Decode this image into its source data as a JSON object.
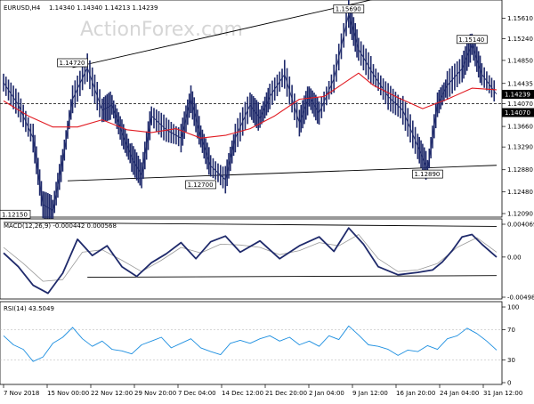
{
  "header": {
    "symbol_label": "EURUSD,H4",
    "ohlc": "1.14340 1.14340 1.14213 1.14239",
    "watermark": "ActionForex.com"
  },
  "chart_data": [
    {
      "type": "candlestick",
      "title": "EURUSD,H4",
      "ylim": [
        1.1209,
        1.1581
      ],
      "y_ticks": [
        "1.15610",
        "1.15240",
        "1.14850",
        "1.14435",
        "1.14070",
        "1.13660",
        "1.13290",
        "1.12880",
        "1.12480",
        "1.12090"
      ],
      "y_tick_values": [
        1.1561,
        1.1524,
        1.1485,
        1.14435,
        1.1407,
        1.1366,
        1.1329,
        1.1288,
        1.1248,
        1.1209
      ],
      "last_price_label": "1.14239",
      "level_label": "1.14070",
      "level_value": 1.1407,
      "series": [
        {
          "name": "price",
          "color": "#1f2a6b",
          "x": [
            0,
            3,
            6,
            8,
            10,
            12,
            14,
            17,
            20,
            22,
            24,
            26,
            28,
            30,
            33,
            36,
            38,
            40,
            42,
            45,
            47,
            50,
            52,
            54,
            57,
            60,
            62,
            64,
            67,
            70,
            72,
            75,
            78,
            81,
            84,
            86,
            88,
            90,
            93,
            95,
            97,
            100
          ],
          "y": [
            1.1445,
            1.1405,
            1.1345,
            1.1225,
            1.1215,
            1.1305,
            1.1415,
            1.1472,
            1.1395,
            1.1405,
            1.1355,
            1.131,
            1.1278,
            1.1385,
            1.136,
            1.1345,
            1.1415,
            1.1348,
            1.1295,
            1.127,
            1.1345,
            1.1405,
            1.138,
            1.142,
            1.146,
            1.1372,
            1.142,
            1.139,
            1.1452,
            1.1569,
            1.1505,
            1.146,
            1.142,
            1.1395,
            1.133,
            1.1289,
            1.1405,
            1.144,
            1.147,
            1.1514,
            1.146,
            1.1424
          ]
        },
        {
          "name": "moving average",
          "color": "#e11b22",
          "x": [
            0,
            5,
            10,
            15,
            20,
            25,
            30,
            35,
            40,
            45,
            50,
            55,
            60,
            65,
            70,
            72,
            75,
            80,
            85,
            90,
            95,
            100
          ],
          "y": [
            1.1412,
            1.1385,
            1.1365,
            1.1365,
            1.1378,
            1.136,
            1.1355,
            1.1362,
            1.1345,
            1.135,
            1.1362,
            1.1385,
            1.1415,
            1.142,
            1.145,
            1.1462,
            1.144,
            1.1418,
            1.1398,
            1.1415,
            1.1435,
            1.1432
          ]
        }
      ],
      "annotations": [
        "1.14720",
        "1.15690",
        "1.15140",
        "1.12700",
        "1.12890",
        "1.12150"
      ],
      "annotation_values": [
        1.1472,
        1.1569,
        1.1514,
        1.127,
        1.1289,
        1.1215
      ],
      "trendlines": [
        {
          "name": "upper channel",
          "x": [
            14,
            80
          ],
          "y": [
            1.1472,
            1.1605
          ]
        },
        {
          "name": "lower channel",
          "x": [
            13,
            100
          ],
          "y": [
            1.1268,
            1.1296
          ]
        }
      ]
    },
    {
      "type": "line",
      "title": "MACD(12,26,9) -0.000442 0.000568",
      "y_ticks": [
        "0.004069",
        "0.00",
        "-0.004981"
      ],
      "y_tick_values": [
        0.004069,
        0.0,
        -0.004981
      ],
      "ylim": [
        -0.004981,
        0.004069
      ],
      "series": [
        {
          "name": "MACD",
          "color": "#1f2a6b",
          "x": [
            0,
            3,
            6,
            9,
            12,
            15,
            18,
            21,
            24,
            27,
            30,
            33,
            36,
            39,
            42,
            45,
            48,
            52,
            56,
            60,
            64,
            67,
            70,
            73,
            76,
            80,
            84,
            87,
            89,
            91,
            93,
            95,
            97,
            100
          ],
          "y": [
            0.0005,
            -0.0012,
            -0.0035,
            -0.0045,
            -0.002,
            0.0022,
            0.0002,
            0.0014,
            -0.0012,
            -0.0024,
            -0.0007,
            0.0004,
            0.0018,
            -0.0002,
            0.0019,
            0.0026,
            0.0006,
            0.002,
            -0.0002,
            0.0014,
            0.0025,
            0.0007,
            0.0036,
            0.0016,
            -0.0012,
            -0.0022,
            -0.0019,
            -0.0016,
            -0.0006,
            0.0008,
            0.0025,
            0.0028,
            0.0016,
            0.0
          ]
        },
        {
          "name": "signal",
          "color": "#9a9a9a",
          "x": [
            0,
            4,
            8,
            12,
            16,
            20,
            24,
            28,
            32,
            36,
            40,
            44,
            48,
            52,
            56,
            60,
            64,
            68,
            72,
            76,
            80,
            84,
            88,
            92,
            96,
            100
          ],
          "y": [
            0.0012,
            -0.0008,
            -0.003,
            -0.0028,
            0.0006,
            0.0009,
            -0.0004,
            -0.0018,
            -0.0004,
            0.0012,
            0.0005,
            0.0016,
            0.0015,
            0.0012,
            0.0003,
            0.0008,
            0.0018,
            0.0014,
            0.0028,
            -0.0002,
            -0.0018,
            -0.0016,
            -0.0008,
            0.0012,
            0.0024,
            0.0006
          ]
        }
      ],
      "trendlines": [
        {
          "name": "upper",
          "x": [
            0,
            100
          ],
          "y": [
            0.0043,
            0.0038
          ]
        },
        {
          "name": "lower",
          "x": [
            17,
            100
          ],
          "y": [
            -0.0025,
            -0.0023
          ]
        }
      ]
    },
    {
      "type": "line",
      "title": "RSI(14) 43.5049",
      "y_ticks": [
        "100",
        "70",
        "30",
        "0"
      ],
      "y_tick_values": [
        100,
        70,
        30,
        0
      ],
      "ylim": [
        0,
        100
      ],
      "series": [
        {
          "name": "RSI",
          "color": "#1d8fe0",
          "x": [
            0,
            2,
            4,
            6,
            8,
            10,
            12,
            14,
            16,
            18,
            20,
            22,
            24,
            26,
            28,
            30,
            32,
            34,
            36,
            38,
            40,
            42,
            44,
            46,
            48,
            50,
            52,
            54,
            56,
            58,
            60,
            62,
            64,
            66,
            68,
            70,
            72,
            74,
            76,
            78,
            80,
            82,
            84,
            86,
            88,
            90,
            92,
            94,
            96,
            98,
            100
          ],
          "y": [
            62,
            50,
            44,
            28,
            34,
            52,
            60,
            73,
            58,
            48,
            55,
            44,
            42,
            38,
            50,
            55,
            60,
            46,
            52,
            58,
            46,
            41,
            37,
            52,
            56,
            52,
            58,
            62,
            55,
            60,
            50,
            55,
            48,
            62,
            57,
            75,
            63,
            50,
            48,
            44,
            36,
            43,
            41,
            49,
            44,
            58,
            62,
            72,
            65,
            55,
            43
          ]
        }
      ]
    }
  ],
  "x_axis": {
    "tick_labels": [
      "7 Nov 2018",
      "15 Nov 00:00",
      "22 Nov 12:00",
      "29 Nov 20:00",
      "7 Dec 04:00",
      "14 Dec 12:00",
      "21 Dec 20:00",
      "2 Jan 04:00",
      "9 Jan 12:00",
      "16 Jan 20:00",
      "24 Jan 04:00",
      "31 Jan 12:00"
    ]
  },
  "colors": {
    "price": "#1f2a6b",
    "moving_average": "#e11b22",
    "rsi": "#1d8fe0",
    "signal": "#9a9a9a"
  }
}
